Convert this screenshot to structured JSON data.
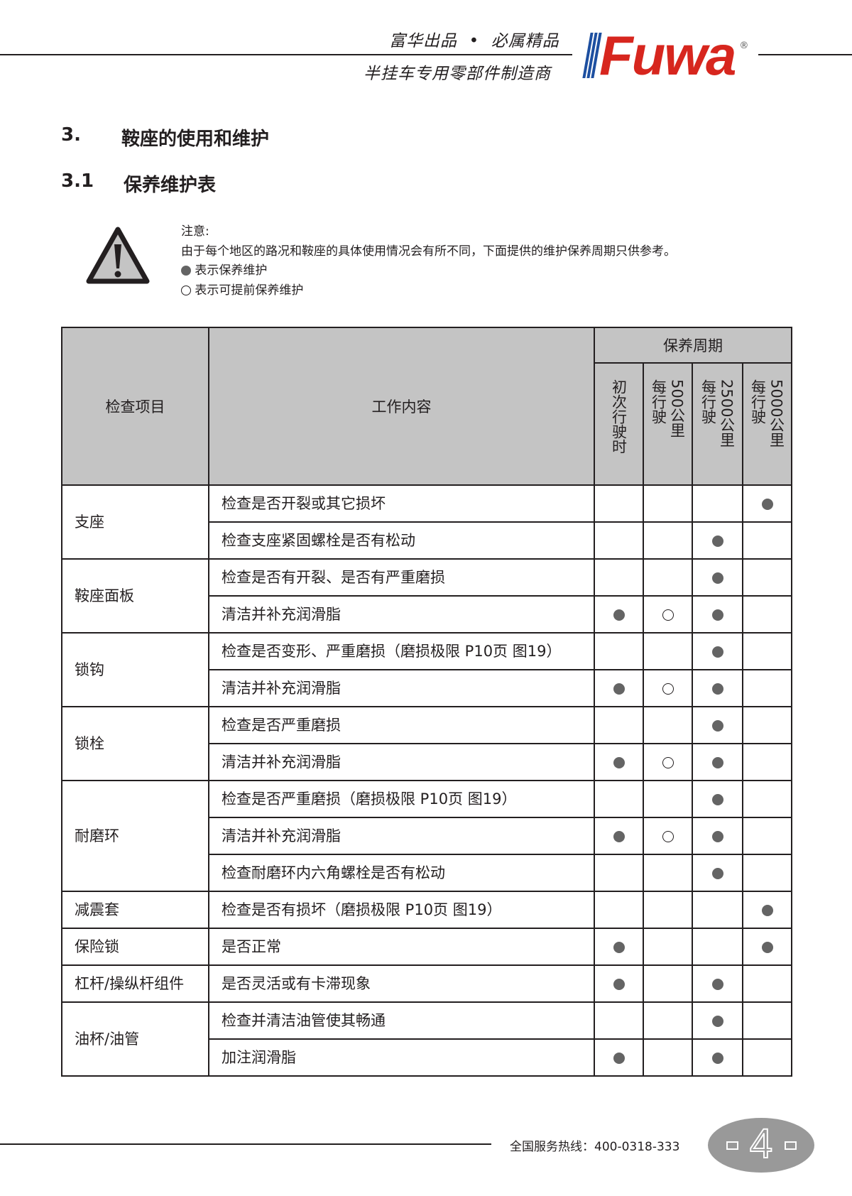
{
  "header": {
    "slogan_top": "富华出品  •  必属精品",
    "slogan_bottom": "半挂车专用零部件制造商",
    "logo_text": "Fuwa",
    "logo_registered": "®",
    "colors": {
      "logo_red": "#d7261e",
      "logo_blue": "#1d4fa0"
    }
  },
  "section": {
    "number": "3.",
    "title": "鞍座的使用和维护"
  },
  "subsection": {
    "number": "3.1",
    "title": "保养维护表"
  },
  "notice": {
    "icon": "warning-triangle-icon",
    "label": "注意:",
    "text": "由于每个地区的路况和鞍座的具体使用情况会有所不同，下面提供的维护保养周期只供参考。",
    "legend_filled": "表示保养维护",
    "legend_open": "表示可提前保养维护"
  },
  "table": {
    "col_item": "检查项目",
    "col_content": "工作内容",
    "period_header": "保养周期",
    "periods": [
      {
        "lines": [
          "初次行驶时"
        ]
      },
      {
        "lines": [
          "500公里",
          "每行驶"
        ]
      },
      {
        "lines": [
          "2500公里",
          "每行驶"
        ]
      },
      {
        "lines": [
          "5000公里",
          "每行驶"
        ]
      }
    ],
    "colors": {
      "header_bg": "#c4c4c4",
      "dot_fill": "#646464"
    },
    "groups": [
      {
        "item": "支座",
        "rows": [
          {
            "content": "检查是否开裂或其它损坏",
            "marks": [
              "",
              "",
              "",
              "filled"
            ]
          },
          {
            "content": "检查支座紧固螺栓是否有松动",
            "marks": [
              "",
              "",
              "filled",
              ""
            ]
          }
        ]
      },
      {
        "item": "鞍座面板",
        "rows": [
          {
            "content": "检查是否有开裂、是否有严重磨损",
            "marks": [
              "",
              "",
              "filled",
              ""
            ]
          },
          {
            "content": "清洁并补充润滑脂",
            "marks": [
              "filled",
              "open",
              "filled",
              ""
            ]
          }
        ]
      },
      {
        "item": "锁钩",
        "rows": [
          {
            "content": "检查是否变形、严重磨损（磨损极限 P10页 图19）",
            "marks": [
              "",
              "",
              "filled",
              ""
            ]
          },
          {
            "content": "清洁并补充润滑脂",
            "marks": [
              "filled",
              "open",
              "filled",
              ""
            ]
          }
        ]
      },
      {
        "item": "锁栓",
        "rows": [
          {
            "content": "检查是否严重磨损",
            "marks": [
              "",
              "",
              "filled",
              ""
            ]
          },
          {
            "content": "清洁并补充润滑脂",
            "marks": [
              "filled",
              "open",
              "filled",
              ""
            ]
          }
        ]
      },
      {
        "item": "耐磨环",
        "rows": [
          {
            "content": "检查是否严重磨损（磨损极限 P10页 图19）",
            "marks": [
              "",
              "",
              "filled",
              ""
            ]
          },
          {
            "content": "清洁并补充润滑脂",
            "marks": [
              "filled",
              "open",
              "filled",
              ""
            ]
          },
          {
            "content": "检查耐磨环内六角螺栓是否有松动",
            "marks": [
              "",
              "",
              "filled",
              ""
            ]
          }
        ]
      },
      {
        "item": "减震套",
        "rows": [
          {
            "content": "检查是否有损坏（磨损极限 P10页 图19）",
            "marks": [
              "",
              "",
              "",
              "filled"
            ]
          }
        ]
      },
      {
        "item": "保险锁",
        "rows": [
          {
            "content": "是否正常",
            "marks": [
              "filled",
              "",
              "",
              "filled"
            ]
          }
        ]
      },
      {
        "item": "杠杆/操纵杆组件",
        "rows": [
          {
            "content": "是否灵活或有卡滞现象",
            "marks": [
              "filled",
              "",
              "filled",
              ""
            ]
          }
        ]
      },
      {
        "item": "油杯/油管",
        "rows": [
          {
            "content": "检查并清洁油管使其畅通",
            "marks": [
              "",
              "",
              "filled",
              ""
            ]
          },
          {
            "content": "加注润滑脂",
            "marks": [
              "filled",
              "",
              "filled",
              ""
            ]
          }
        ]
      }
    ]
  },
  "footer": {
    "hotline": "全国服务热线：400-0318-333",
    "page_number": "4"
  }
}
